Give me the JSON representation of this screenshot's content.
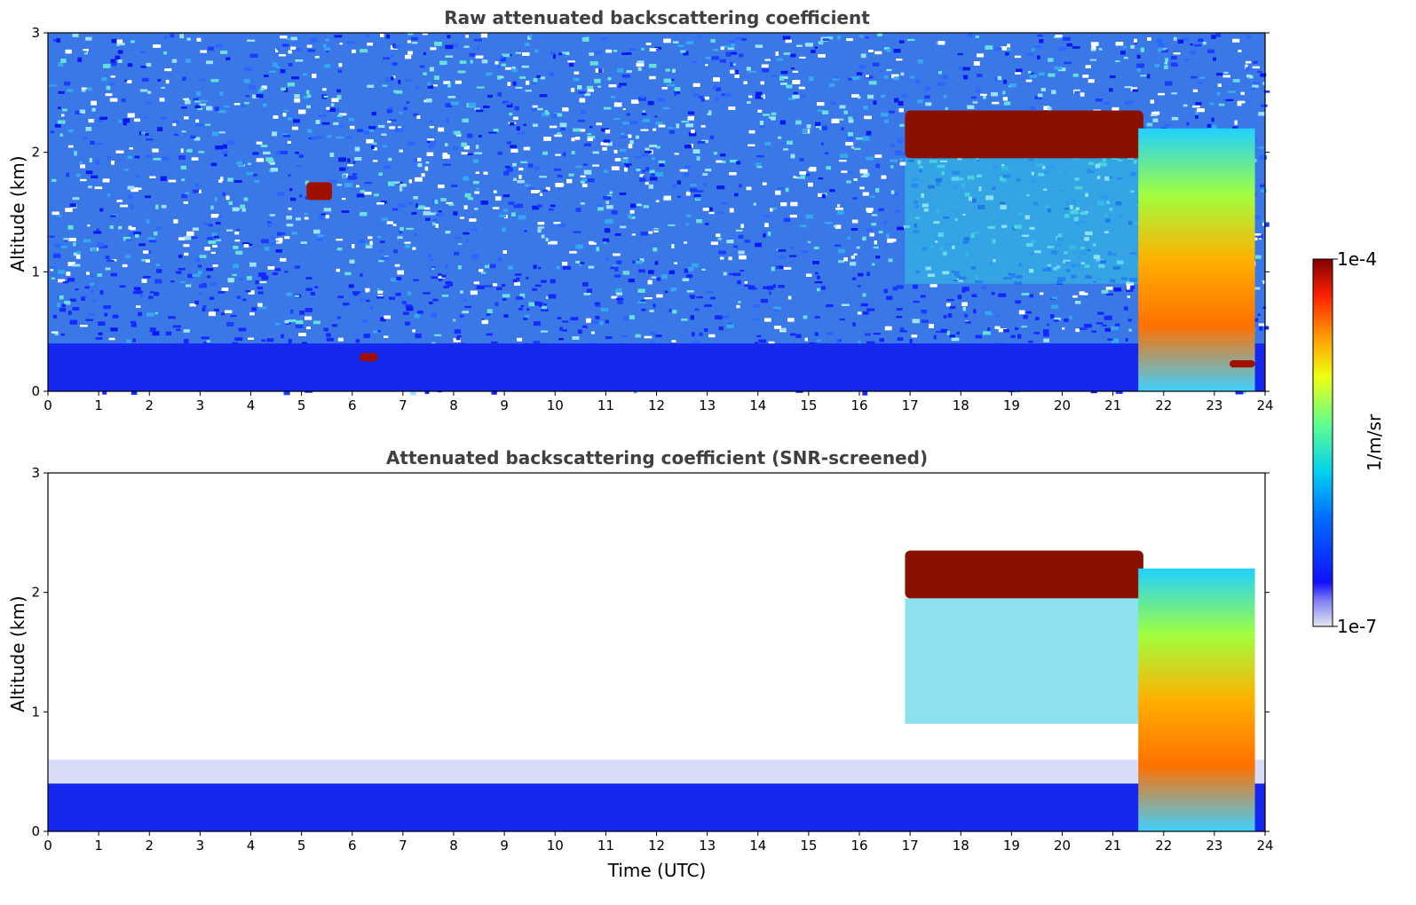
{
  "chart_data": [
    {
      "type": "heatmap",
      "title": "Raw attenuated backscattering coefficient",
      "xlabel": "",
      "ylabel": "Altitude (km)",
      "xlim": [
        0,
        24
      ],
      "ylim": [
        0,
        3
      ],
      "xticks": [
        "0",
        "1",
        "2",
        "3",
        "4",
        "5",
        "6",
        "7",
        "8",
        "9",
        "10",
        "11",
        "12",
        "13",
        "14",
        "15",
        "16",
        "17",
        "18",
        "19",
        "20",
        "21",
        "22",
        "23",
        "24"
      ],
      "yticks": [
        "0",
        "1",
        "2",
        "3"
      ],
      "background": "noisy",
      "features": [
        {
          "kind": "surface_layer",
          "x": [
            0,
            24
          ],
          "y": [
            0,
            0.4
          ]
        },
        {
          "kind": "cloud",
          "x": [
            16.9,
            21.6
          ],
          "y": [
            1.95,
            2.35
          ]
        },
        {
          "kind": "precipitation",
          "x": [
            21.5,
            23.8
          ],
          "y": [
            0,
            2.2
          ]
        },
        {
          "kind": "blob",
          "x": [
            5.1,
            5.6
          ],
          "y": [
            1.6,
            1.75
          ]
        },
        {
          "kind": "blob",
          "x": [
            6.15,
            6.5
          ],
          "y": [
            0.25,
            0.32
          ]
        },
        {
          "kind": "blob",
          "x": [
            23.3,
            23.8
          ],
          "y": [
            0.2,
            0.26
          ]
        }
      ]
    },
    {
      "type": "heatmap",
      "title": "Attenuated backscattering coefficient (SNR-screened)",
      "xlabel": "Time (UTC)",
      "ylabel": "Altitude (km)",
      "xlim": [
        0,
        24
      ],
      "ylim": [
        0,
        3
      ],
      "xticks": [
        "0",
        "1",
        "2",
        "3",
        "4",
        "5",
        "6",
        "7",
        "8",
        "9",
        "10",
        "11",
        "12",
        "13",
        "14",
        "15",
        "16",
        "17",
        "18",
        "19",
        "20",
        "21",
        "22",
        "23",
        "24"
      ],
      "yticks": [
        "0",
        "1",
        "2",
        "3"
      ],
      "background": "screened",
      "features": [
        {
          "kind": "surface_layer",
          "x": [
            0,
            24
          ],
          "y": [
            0,
            0.6
          ]
        },
        {
          "kind": "cloud",
          "x": [
            16.9,
            21.6
          ],
          "y": [
            1.95,
            2.35
          ]
        },
        {
          "kind": "precipitation",
          "x": [
            21.5,
            23.8
          ],
          "y": [
            0,
            2.2
          ]
        }
      ]
    }
  ],
  "colorbar": {
    "label": "1/m/sr",
    "max_label": "1e-4",
    "min_label": "1e-7",
    "colormap": "jet"
  }
}
